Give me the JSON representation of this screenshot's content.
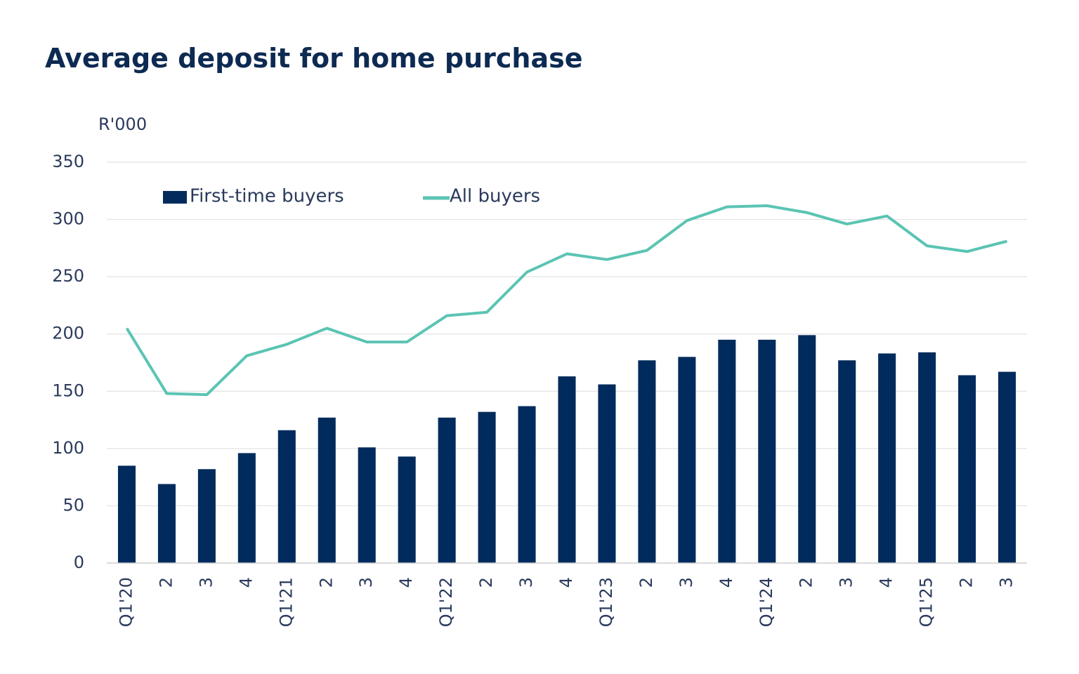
{
  "chart_data": {
    "type": "bar_line",
    "title": "Average deposit for home purchase",
    "y_label": "R'000",
    "categories": [
      "Q1'20",
      "2",
      "3",
      "4",
      "Q1'21",
      "2",
      "3",
      "4",
      "Q1'22",
      "2",
      "3",
      "4",
      "Q1'23",
      "2",
      "3",
      "4",
      "Q1'24",
      "2",
      "3",
      "4",
      "Q1'25",
      "2",
      "3"
    ],
    "series": [
      {
        "name": "First-time buyers",
        "type": "bar",
        "color": "#002b5c",
        "values": [
          85,
          69,
          82,
          96,
          116,
          127,
          101,
          93,
          127,
          132,
          137,
          163,
          156,
          177,
          180,
          195,
          195,
          199,
          177,
          183,
          184,
          164,
          167
        ]
      },
      {
        "name": "All buyers",
        "type": "line",
        "color": "#5bc4b3",
        "values": [
          205,
          148,
          147,
          181,
          191,
          205,
          193,
          193,
          216,
          219,
          254,
          270,
          265,
          273,
          299,
          311,
          312,
          306,
          296,
          303,
          277,
          272,
          281
        ]
      }
    ],
    "ylim": [
      0,
      350
    ],
    "yticks": [
      0,
      50,
      100,
      150,
      200,
      250,
      300,
      350
    ],
    "grid": true
  }
}
